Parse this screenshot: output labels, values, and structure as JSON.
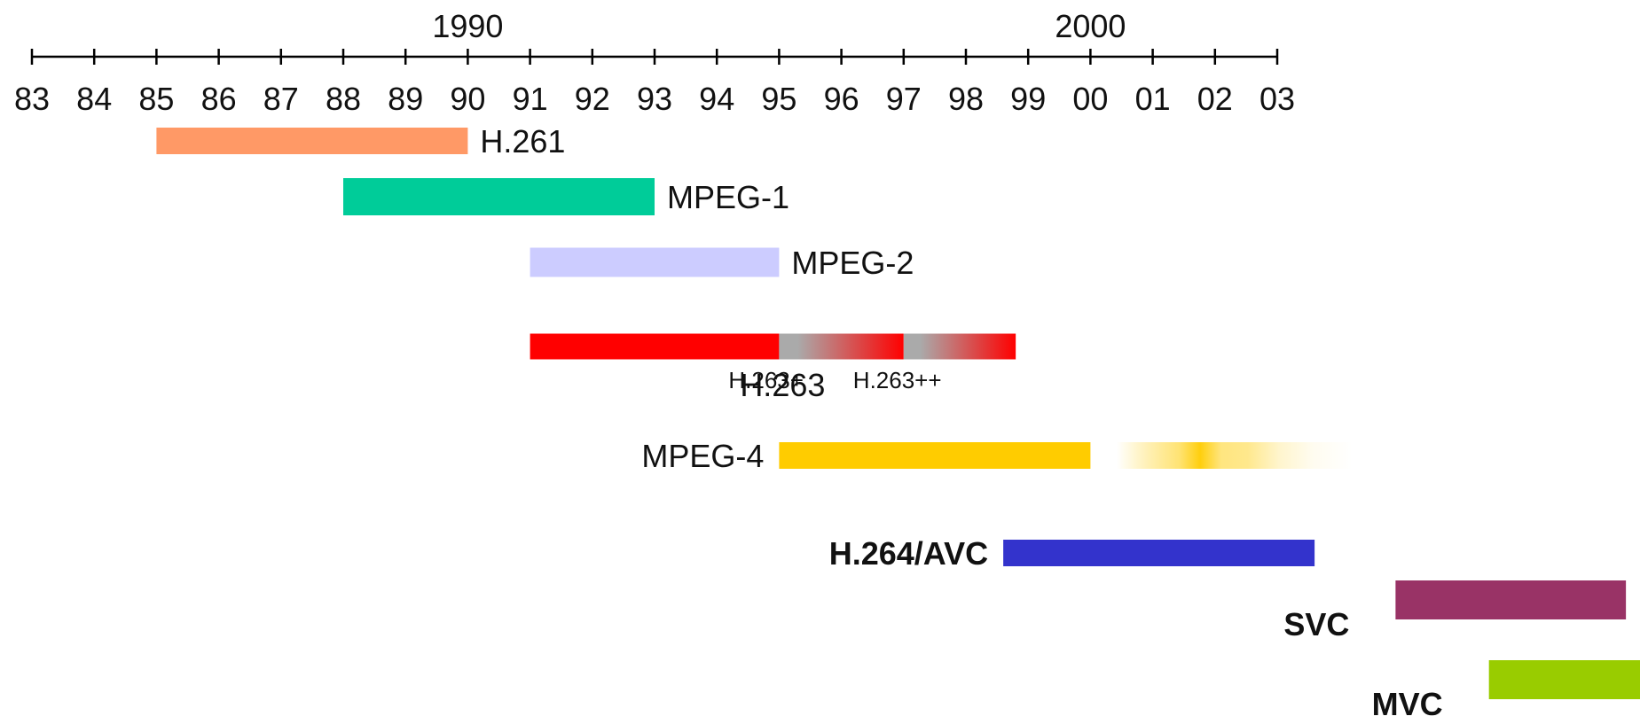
{
  "chart_data": {
    "type": "timeline",
    "decade_labels": [
      {
        "year": 1990,
        "label": "1990"
      },
      {
        "year": 2000,
        "label": "2000"
      }
    ],
    "axis": {
      "start_year": 1983,
      "end_year": 2003,
      "tick_labels": [
        "83",
        "84",
        "85",
        "86",
        "87",
        "88",
        "89",
        "90",
        "91",
        "92",
        "93",
        "94",
        "95",
        "96",
        "97",
        "98",
        "99",
        "00",
        "01",
        "02",
        "03"
      ]
    },
    "bars": [
      {
        "name": "H.261",
        "label": "H.261",
        "start": 1985.0,
        "end": 1990.0,
        "color": "#ff9966",
        "label_pos": "right",
        "style": "normal"
      },
      {
        "name": "MPEG-1",
        "label": "MPEG-1",
        "start": 1988.0,
        "end": 1993.0,
        "color": "#00cc99",
        "label_pos": "right",
        "style": "normal"
      },
      {
        "name": "MPEG-2",
        "label": "MPEG-2",
        "start": 1991.0,
        "end": 1995.0,
        "color": "#ccccff",
        "label_pos": "right",
        "style": "normal"
      },
      {
        "name": "H.263",
        "label": "H.263",
        "start": 1991.0,
        "end": 1995.0,
        "color": "#ff0000",
        "label_pos": "below-end",
        "style": "normal"
      },
      {
        "name": "H.263+",
        "label": "H.263+",
        "start": 1995.0,
        "end": 1997.0,
        "color": "#ff0000",
        "gradient_from": "#aaaaaa",
        "label_pos": "below",
        "style": "small"
      },
      {
        "name": "H.263++",
        "label": "H.263++",
        "start": 1997.0,
        "end": 1998.8,
        "color": "#ff0000",
        "gradient_from": "#aaaaaa",
        "label_pos": "below",
        "style": "small"
      },
      {
        "name": "MPEG-4",
        "label": "MPEG-4",
        "start": 1995.0,
        "end": 2000.0,
        "color": "#ffcc00",
        "label_pos": "left",
        "style": "normal"
      },
      {
        "name": "MPEG-4-extension",
        "label": "",
        "start": 2000.0,
        "end": 2004.2,
        "color": "#ffcc00",
        "fade": true,
        "label_pos": "none",
        "style": "normal"
      },
      {
        "name": "H.264/AVC",
        "label": "H.264/AVC",
        "start": 1998.6,
        "end": 2003.6,
        "color": "#3333cc",
        "label_pos": "left",
        "style": "bold"
      },
      {
        "name": "SVC",
        "label": "SVC",
        "start": 2004.9,
        "end": 2008.6,
        "color": "#993366",
        "label_pos": "left-below",
        "style": "bold"
      },
      {
        "name": "MVC",
        "label": "MVC",
        "start": 2006.4,
        "end": 2008.9,
        "color": "#99cc00",
        "label_pos": "left-below",
        "style": "bold"
      }
    ]
  }
}
